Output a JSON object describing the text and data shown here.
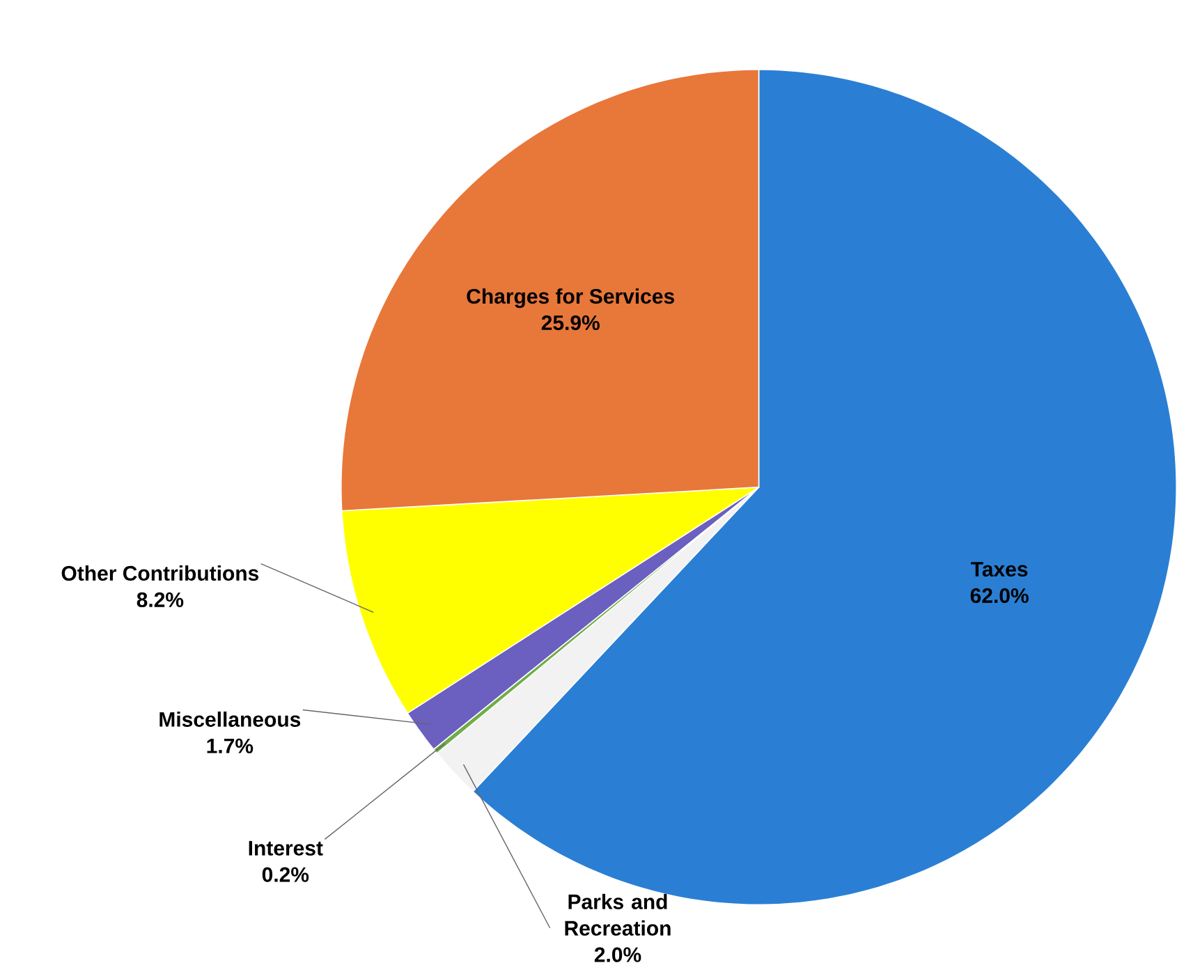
{
  "chart_data": {
    "type": "pie",
    "categories": [
      "Taxes",
      "Parks and Recreation",
      "Interest",
      "Miscellaneous",
      "Other Contributions",
      "Charges for Services"
    ],
    "values": [
      62.0,
      2.0,
      0.2,
      1.7,
      8.2,
      25.9
    ],
    "value_labels": [
      "62.0%",
      "2.0%",
      "0.2%",
      "1.7%",
      "8.2%",
      "25.9%"
    ],
    "colors": [
      "#2a7fd4",
      "#f2f2f2",
      "#70ad47",
      "#6b5fc0",
      "#ffff00",
      "#e8773a"
    ]
  }
}
